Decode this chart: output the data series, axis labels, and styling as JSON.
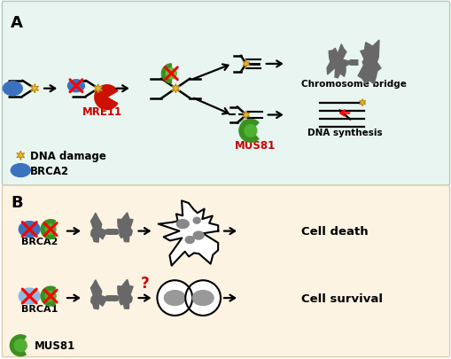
{
  "panel_a_bg": "#e8f5f0",
  "panel_b_bg": "#fdf3e3",
  "panel_a_label": "A",
  "panel_b_label": "B",
  "label_fontsize": 13,
  "label_fontweight": "bold",
  "text_fontsize": 9,
  "red_color": "#cc0000",
  "green_color": "#3a9020",
  "blue_color": "#3a72c0",
  "light_blue_color": "#90b8e0",
  "gray_color": "#777777",
  "gold_color": "#e8b830",
  "chromosome_bridge_text": "Chromosome bridge",
  "dna_synthesis_text": "DNA synthesis",
  "dna_damage_text": "DNA damage",
  "brca2_text": "BRCA2",
  "brca1_text": "BRCA1",
  "mus81_text": "MUS81",
  "mre11_text": "MRE11",
  "cell_death_text": "Cell death",
  "cell_survival_text": "Cell survival"
}
